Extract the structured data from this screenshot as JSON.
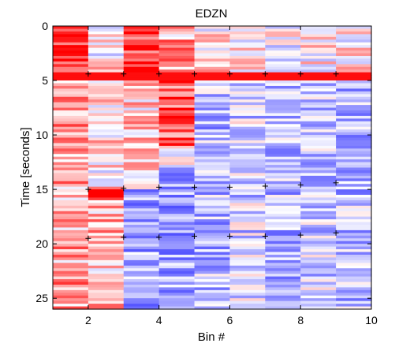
{
  "chart_data": {
    "type": "heatmap",
    "title": "EDZN",
    "xlabel": "Bin #",
    "ylabel": "Time [seconds]",
    "xlim": [
      1,
      10
    ],
    "ylim": [
      0,
      26
    ],
    "y_reversed": true,
    "x_ticks": [
      2,
      4,
      6,
      8,
      10
    ],
    "y_ticks": [
      0,
      5,
      10,
      15,
      20,
      25
    ],
    "columns": [
      1,
      2,
      3,
      4,
      5,
      6,
      7,
      8,
      9
    ],
    "row_height_seconds": 0.25,
    "colormap": "blue-white-red",
    "color_low": "#3a3aff",
    "color_mid": "#ffffff",
    "color_high": "#ff0000",
    "grid": false,
    "markers": [
      {
        "x": 2,
        "y": 4.4
      },
      {
        "x": 3,
        "y": 4.4
      },
      {
        "x": 4,
        "y": 4.4
      },
      {
        "x": 5,
        "y": 4.4
      },
      {
        "x": 6,
        "y": 4.4
      },
      {
        "x": 7,
        "y": 4.4
      },
      {
        "x": 8,
        "y": 4.4
      },
      {
        "x": 9,
        "y": 4.4
      },
      {
        "x": 2,
        "y": 15.0
      },
      {
        "x": 3,
        "y": 14.9
      },
      {
        "x": 4,
        "y": 14.8
      },
      {
        "x": 5,
        "y": 14.8
      },
      {
        "x": 6,
        "y": 14.8
      },
      {
        "x": 7,
        "y": 14.7
      },
      {
        "x": 8,
        "y": 14.6
      },
      {
        "x": 9,
        "y": 14.4
      },
      {
        "x": 2,
        "y": 19.5
      },
      {
        "x": 3,
        "y": 19.4
      },
      {
        "x": 4,
        "y": 19.4
      },
      {
        "x": 5,
        "y": 19.3
      },
      {
        "x": 6,
        "y": 19.3
      },
      {
        "x": 7,
        "y": 19.3
      },
      {
        "x": 8,
        "y": 19.2
      },
      {
        "x": 9,
        "y": 19.0
      }
    ]
  }
}
